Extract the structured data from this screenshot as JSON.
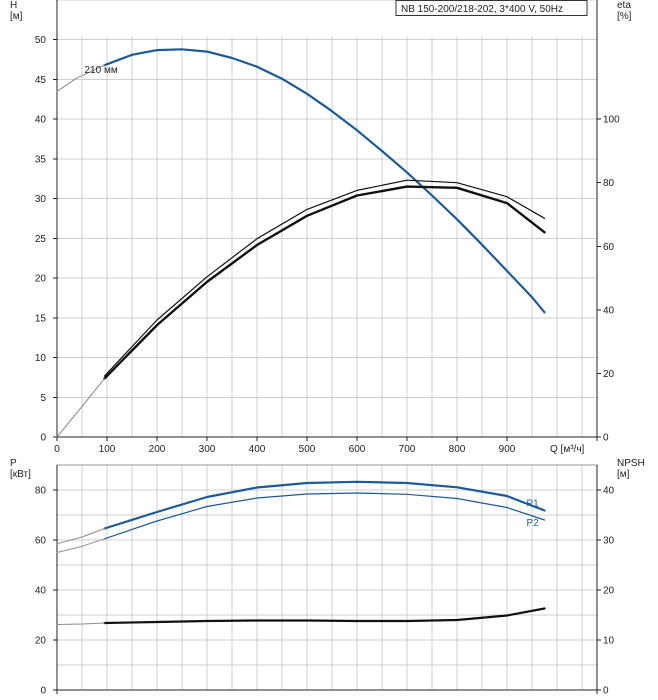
{
  "chart_data": [
    {
      "type": "line",
      "title": "NB 150-200/218-202, 3*400 V, 50Hz",
      "xlabel": "Q [м³/ч]",
      "ylabel": "H\n[м]",
      "y2label": "eta\n[%]",
      "xlim": [
        0,
        1080
      ],
      "ylim": [
        0,
        55
      ],
      "y2lim": [
        0,
        137.5
      ],
      "xticks": [
        0,
        100,
        200,
        300,
        400,
        500,
        600,
        700,
        800,
        900
      ],
      "yticks": [
        0,
        5,
        10,
        15,
        20,
        25,
        30,
        35,
        40,
        45,
        50
      ],
      "y2ticks": [
        0,
        20,
        40,
        60,
        80,
        100
      ],
      "grid": true,
      "annotations": [
        {
          "text": "210 мм",
          "x": 115,
          "y": 46.3
        }
      ],
      "series": [
        {
          "name": "",
          "axis": "left",
          "color": "#1e5a96",
          "width": 2.2,
          "x": [
            95,
            150,
            200,
            250,
            300,
            350,
            400,
            450,
            500,
            550,
            600,
            650,
            700,
            750,
            800,
            850,
            900,
            950,
            975
          ],
          "y": [
            46.8,
            48.1,
            48.7,
            48.8,
            48.5,
            47.7,
            46.6,
            45.1,
            43.2,
            41.0,
            38.6,
            36.0,
            33.3,
            30.4,
            27.4,
            24.2,
            20.9,
            17.6,
            15.7
          ]
        },
        {
          "name": "",
          "axis": "left",
          "color": "#8c8c8c",
          "width": 1,
          "x": [
            0,
            40,
            95
          ],
          "y": [
            43.5,
            45.2,
            46.8
          ]
        },
        {
          "name": "",
          "axis": "right",
          "color": "#111111",
          "width": 1.2,
          "x": [
            95,
            200,
            300,
            400,
            500,
            600,
            700,
            800,
            900,
            975
          ],
          "y": [
            19.2,
            36.8,
            50.4,
            62.4,
            71.6,
            77.6,
            80.8,
            80.0,
            75.6,
            68.8
          ]
        },
        {
          "name": "",
          "axis": "right",
          "color": "#111111",
          "width": 2.4,
          "x": [
            95,
            200,
            300,
            400,
            500,
            600,
            700,
            800,
            900,
            975
          ],
          "y": [
            18.4,
            35.2,
            48.8,
            60.4,
            69.6,
            76.0,
            78.8,
            78.4,
            73.6,
            64.4
          ]
        },
        {
          "name": "",
          "axis": "right",
          "color": "#8c8c8c",
          "width": 1,
          "x": [
            0,
            50,
            95
          ],
          "y": [
            0,
            9.6,
            18.4
          ]
        }
      ]
    },
    {
      "type": "line",
      "title": "",
      "xlabel": "",
      "ylabel": "P\n[кВт]",
      "y2label": "NPSH\n[м]",
      "xlim": [
        0,
        1080
      ],
      "ylim": [
        0,
        90
      ],
      "y2lim": [
        0,
        45
      ],
      "yticks": [
        0,
        20,
        40,
        60,
        80
      ],
      "y2ticks": [
        0,
        10,
        20,
        30,
        40
      ],
      "grid": true,
      "series": [
        {
          "name": "P1",
          "axis": "left",
          "color": "#1e5a96",
          "width": 2.2,
          "x": [
            95,
            200,
            300,
            400,
            500,
            600,
            700,
            800,
            900,
            975
          ],
          "y": [
            64.6,
            71.2,
            77.2,
            81.0,
            82.8,
            83.3,
            82.8,
            81.1,
            77.6,
            71.8
          ]
        },
        {
          "name": "P2",
          "axis": "left",
          "color": "#1e5a96",
          "width": 1.2,
          "x": [
            95,
            200,
            300,
            400,
            500,
            600,
            700,
            800,
            900,
            975
          ],
          "y": [
            60.5,
            67.6,
            73.4,
            76.8,
            78.4,
            78.8,
            78.3,
            76.6,
            73.0,
            68.0
          ]
        },
        {
          "name": "",
          "axis": "left",
          "color": "#8c8c8c",
          "width": 1,
          "x": [
            0,
            50,
            95
          ],
          "y": [
            55.0,
            57.5,
            60.5
          ]
        },
        {
          "name": "",
          "axis": "left",
          "color": "#8c8c8c",
          "width": 1,
          "x": [
            0,
            50,
            95
          ],
          "y": [
            58.5,
            61.2,
            64.6
          ]
        },
        {
          "name": "",
          "axis": "right",
          "color": "#111111",
          "width": 2.2,
          "x": [
            95,
            200,
            300,
            400,
            500,
            600,
            700,
            800,
            900,
            975
          ],
          "y": [
            13.4,
            13.6,
            13.8,
            13.9,
            13.9,
            13.8,
            13.8,
            14.0,
            14.9,
            16.3
          ]
        },
        {
          "name": "",
          "axis": "right",
          "color": "#8c8c8c",
          "width": 1,
          "x": [
            0,
            50,
            95
          ],
          "y": [
            13.1,
            13.2,
            13.4
          ]
        }
      ]
    }
  ]
}
